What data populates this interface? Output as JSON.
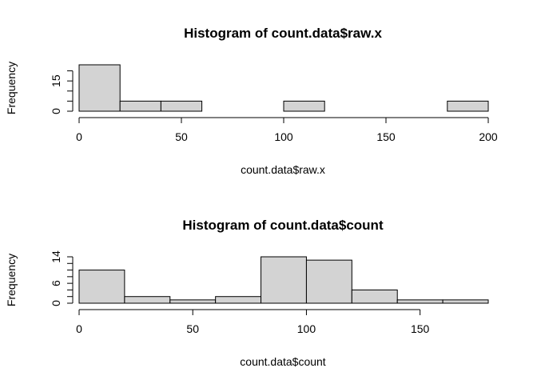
{
  "chart_data": [
    {
      "type": "bar",
      "title": "Histogram of count.data$raw.x",
      "xlabel": "count.data$raw.x",
      "ylabel": "Frequency",
      "bins": [
        {
          "x0": 0,
          "x1": 20,
          "count": 23
        },
        {
          "x0": 20,
          "x1": 40,
          "count": 5
        },
        {
          "x0": 40,
          "x1": 60,
          "count": 5
        },
        {
          "x0": 60,
          "x1": 80,
          "count": 0
        },
        {
          "x0": 80,
          "x1": 100,
          "count": 0
        },
        {
          "x0": 100,
          "x1": 120,
          "count": 5
        },
        {
          "x0": 120,
          "x1": 140,
          "count": 0
        },
        {
          "x0": 140,
          "x1": 160,
          "count": 0
        },
        {
          "x0": 160,
          "x1": 180,
          "count": 0
        },
        {
          "x0": 180,
          "x1": 200,
          "count": 5
        }
      ],
      "xlim": [
        0,
        200
      ],
      "ylim": [
        0,
        23
      ],
      "xticks": [
        0,
        50,
        100,
        150,
        200
      ],
      "yticks": [
        0,
        5,
        10,
        15,
        20
      ],
      "ytick_labels": [
        "0",
        "",
        "",
        "15",
        ""
      ],
      "grid": false,
      "legend": "none"
    },
    {
      "type": "bar",
      "title": "Histogram of count.data$count",
      "xlabel": "count.data$count",
      "ylabel": "Frequency",
      "bins": [
        {
          "x0": 0,
          "x1": 20,
          "count": 10
        },
        {
          "x0": 20,
          "x1": 40,
          "count": 2
        },
        {
          "x0": 40,
          "x1": 60,
          "count": 1
        },
        {
          "x0": 60,
          "x1": 80,
          "count": 2
        },
        {
          "x0": 80,
          "x1": 100,
          "count": 14
        },
        {
          "x0": 100,
          "x1": 120,
          "count": 13
        },
        {
          "x0": 120,
          "x1": 140,
          "count": 4
        },
        {
          "x0": 140,
          "x1": 160,
          "count": 1
        },
        {
          "x0": 160,
          "x1": 180,
          "count": 1
        }
      ],
      "xlim": [
        0,
        180
      ],
      "ylim": [
        0,
        14
      ],
      "xticks": [
        0,
        50,
        100,
        150
      ],
      "yticks": [
        0,
        2,
        4,
        6,
        8,
        10,
        12,
        14
      ],
      "ytick_labels": [
        "0",
        "",
        "",
        "6",
        "",
        "",
        "",
        "14"
      ],
      "grid": false,
      "legend": "none"
    }
  ]
}
